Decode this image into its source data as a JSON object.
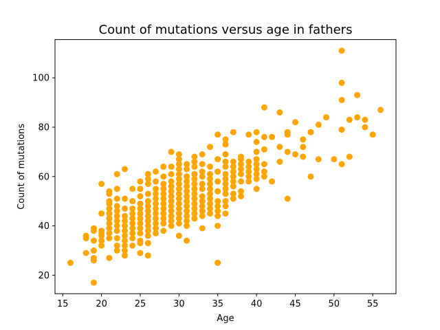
{
  "chart_data": {
    "type": "scatter",
    "title": "Count of mutations versus age in fathers",
    "xlabel": "Age",
    "ylabel": "Count of mutations",
    "xlim": [
      14.0,
      58.0
    ],
    "ylim": [
      12.5,
      115.5
    ],
    "xticks": [
      15,
      20,
      25,
      30,
      35,
      40,
      45,
      50,
      55
    ],
    "yticks": [
      20,
      40,
      60,
      80,
      100
    ],
    "grid": false,
    "marker_color": "#ffa500",
    "points": [
      [
        16,
        25
      ],
      [
        18,
        29
      ],
      [
        18,
        35
      ],
      [
        18,
        36
      ],
      [
        19,
        17
      ],
      [
        19,
        26
      ],
      [
        19,
        27
      ],
      [
        19,
        30
      ],
      [
        19,
        34
      ],
      [
        19,
        38
      ],
      [
        19,
        39
      ],
      [
        20,
        32
      ],
      [
        20,
        34
      ],
      [
        20,
        36
      ],
      [
        20,
        37
      ],
      [
        20,
        38
      ],
      [
        20,
        45
      ],
      [
        20,
        57
      ],
      [
        21,
        27
      ],
      [
        21,
        35
      ],
      [
        21,
        37
      ],
      [
        21,
        39
      ],
      [
        21,
        41
      ],
      [
        21,
        43
      ],
      [
        21,
        45
      ],
      [
        21,
        47
      ],
      [
        21,
        49
      ],
      [
        21,
        50
      ],
      [
        21,
        53
      ],
      [
        21,
        54
      ],
      [
        22,
        30
      ],
      [
        22,
        32
      ],
      [
        22,
        35
      ],
      [
        22,
        38
      ],
      [
        22,
        40
      ],
      [
        22,
        42
      ],
      [
        22,
        44
      ],
      [
        22,
        46
      ],
      [
        22,
        48
      ],
      [
        22,
        51
      ],
      [
        22,
        55
      ],
      [
        22,
        61
      ],
      [
        23,
        28
      ],
      [
        23,
        30
      ],
      [
        23,
        32
      ],
      [
        23,
        34
      ],
      [
        23,
        36
      ],
      [
        23,
        38
      ],
      [
        23,
        40
      ],
      [
        23,
        42
      ],
      [
        23,
        44
      ],
      [
        23,
        47
      ],
      [
        23,
        51
      ],
      [
        23,
        63
      ],
      [
        24,
        32
      ],
      [
        24,
        35
      ],
      [
        24,
        37
      ],
      [
        24,
        39
      ],
      [
        24,
        41
      ],
      [
        24,
        43
      ],
      [
        24,
        45
      ],
      [
        24,
        47
      ],
      [
        24,
        50
      ],
      [
        24,
        55
      ],
      [
        25,
        29
      ],
      [
        25,
        33
      ],
      [
        25,
        34
      ],
      [
        25,
        37
      ],
      [
        25,
        39
      ],
      [
        25,
        41
      ],
      [
        25,
        43
      ],
      [
        25,
        45
      ],
      [
        25,
        47
      ],
      [
        25,
        49
      ],
      [
        25,
        52
      ],
      [
        25,
        55
      ],
      [
        25,
        58
      ],
      [
        26,
        28
      ],
      [
        26,
        33
      ],
      [
        26,
        36
      ],
      [
        26,
        38
      ],
      [
        26,
        40
      ],
      [
        26,
        42
      ],
      [
        26,
        44
      ],
      [
        26,
        46
      ],
      [
        26,
        48
      ],
      [
        26,
        50
      ],
      [
        26,
        53
      ],
      [
        26,
        57
      ],
      [
        26,
        59
      ],
      [
        26,
        61
      ],
      [
        27,
        37
      ],
      [
        27,
        39
      ],
      [
        27,
        41
      ],
      [
        27,
        43
      ],
      [
        27,
        45
      ],
      [
        27,
        47
      ],
      [
        27,
        49
      ],
      [
        27,
        51
      ],
      [
        27,
        53
      ],
      [
        27,
        55
      ],
      [
        27,
        58
      ],
      [
        27,
        62
      ],
      [
        28,
        38
      ],
      [
        28,
        41
      ],
      [
        28,
        43
      ],
      [
        28,
        45
      ],
      [
        28,
        47
      ],
      [
        28,
        49
      ],
      [
        28,
        51
      ],
      [
        28,
        53
      ],
      [
        28,
        55
      ],
      [
        28,
        57
      ],
      [
        28,
        60
      ],
      [
        28,
        64
      ],
      [
        29,
        40
      ],
      [
        29,
        42
      ],
      [
        29,
        44
      ],
      [
        29,
        46
      ],
      [
        29,
        48
      ],
      [
        29,
        50
      ],
      [
        29,
        52
      ],
      [
        29,
        54
      ],
      [
        29,
        56
      ],
      [
        29,
        58
      ],
      [
        29,
        61
      ],
      [
        29,
        64
      ],
      [
        29,
        70
      ],
      [
        30,
        36
      ],
      [
        30,
        41
      ],
      [
        30,
        43
      ],
      [
        30,
        45
      ],
      [
        30,
        47
      ],
      [
        30,
        49
      ],
      [
        30,
        51
      ],
      [
        30,
        53
      ],
      [
        30,
        55
      ],
      [
        30,
        57
      ],
      [
        30,
        59
      ],
      [
        30,
        61
      ],
      [
        30,
        63
      ],
      [
        30,
        65
      ],
      [
        30,
        67
      ],
      [
        30,
        69
      ],
      [
        31,
        34
      ],
      [
        31,
        40
      ],
      [
        31,
        42
      ],
      [
        31,
        44
      ],
      [
        31,
        46
      ],
      [
        31,
        48
      ],
      [
        31,
        50
      ],
      [
        31,
        52
      ],
      [
        31,
        54
      ],
      [
        31,
        56
      ],
      [
        31,
        58
      ],
      [
        31,
        60
      ],
      [
        31,
        63
      ],
      [
        31,
        65
      ],
      [
        32,
        43
      ],
      [
        32,
        45
      ],
      [
        32,
        47
      ],
      [
        32,
        49
      ],
      [
        32,
        51
      ],
      [
        32,
        53
      ],
      [
        32,
        55
      ],
      [
        32,
        57
      ],
      [
        32,
        59
      ],
      [
        32,
        61
      ],
      [
        32,
        64
      ],
      [
        32,
        66
      ],
      [
        32,
        68
      ],
      [
        33,
        39
      ],
      [
        33,
        44
      ],
      [
        33,
        46
      ],
      [
        33,
        48
      ],
      [
        33,
        50
      ],
      [
        33,
        52
      ],
      [
        33,
        55
      ],
      [
        33,
        57
      ],
      [
        33,
        60
      ],
      [
        33,
        62
      ],
      [
        33,
        65
      ],
      [
        33,
        69
      ],
      [
        34,
        45
      ],
      [
        34,
        47
      ],
      [
        34,
        49
      ],
      [
        34,
        51
      ],
      [
        34,
        53
      ],
      [
        34,
        55
      ],
      [
        34,
        57
      ],
      [
        34,
        59
      ],
      [
        34,
        61
      ],
      [
        34,
        64
      ],
      [
        34,
        72
      ],
      [
        35,
        25
      ],
      [
        35,
        40
      ],
      [
        35,
        44
      ],
      [
        35,
        46
      ],
      [
        35,
        48
      ],
      [
        35,
        50
      ],
      [
        35,
        54
      ],
      [
        35,
        58
      ],
      [
        35,
        62
      ],
      [
        35,
        67
      ],
      [
        35,
        77
      ],
      [
        36,
        45
      ],
      [
        36,
        48
      ],
      [
        36,
        50
      ],
      [
        36,
        53
      ],
      [
        36,
        55
      ],
      [
        36,
        57
      ],
      [
        36,
        59
      ],
      [
        36,
        61
      ],
      [
        36,
        64
      ],
      [
        36,
        66
      ],
      [
        36,
        69
      ],
      [
        36,
        73
      ],
      [
        36,
        75
      ],
      [
        37,
        51
      ],
      [
        37,
        53
      ],
      [
        37,
        56
      ],
      [
        37,
        58
      ],
      [
        37,
        60
      ],
      [
        37,
        62
      ],
      [
        37,
        64
      ],
      [
        37,
        66
      ],
      [
        37,
        78
      ],
      [
        38,
        52
      ],
      [
        38,
        54
      ],
      [
        38,
        58
      ],
      [
        38,
        61
      ],
      [
        38,
        63
      ],
      [
        38,
        65
      ],
      [
        38,
        67
      ],
      [
        38,
        68
      ],
      [
        39,
        58
      ],
      [
        39,
        60
      ],
      [
        39,
        62
      ],
      [
        39,
        64
      ],
      [
        39,
        66
      ],
      [
        39,
        77
      ],
      [
        40,
        55
      ],
      [
        40,
        59
      ],
      [
        40,
        61
      ],
      [
        40,
        63
      ],
      [
        40,
        65
      ],
      [
        40,
        67
      ],
      [
        40,
        70
      ],
      [
        40,
        74
      ],
      [
        40,
        78
      ],
      [
        41,
        60
      ],
      [
        41,
        62
      ],
      [
        41,
        65
      ],
      [
        41,
        71
      ],
      [
        41,
        76
      ],
      [
        41,
        88
      ],
      [
        42,
        58
      ],
      [
        42,
        76
      ],
      [
        43,
        66
      ],
      [
        43,
        72
      ],
      [
        43,
        86
      ],
      [
        44,
        51
      ],
      [
        44,
        70
      ],
      [
        44,
        77
      ],
      [
        44,
        78
      ],
      [
        45,
        69
      ],
      [
        45,
        82
      ],
      [
        46,
        68
      ],
      [
        46,
        72
      ],
      [
        46,
        75
      ],
      [
        47,
        60
      ],
      [
        47,
        78
      ],
      [
        48,
        67
      ],
      [
        48,
        81
      ],
      [
        49,
        84
      ],
      [
        50,
        67
      ],
      [
        51,
        65
      ],
      [
        51,
        79
      ],
      [
        51,
        91
      ],
      [
        51,
        98
      ],
      [
        51,
        111
      ],
      [
        52,
        68
      ],
      [
        52,
        83
      ],
      [
        53,
        84
      ],
      [
        53,
        93
      ],
      [
        54,
        80
      ],
      [
        54,
        83
      ],
      [
        55,
        77
      ],
      [
        56,
        87
      ]
    ]
  }
}
